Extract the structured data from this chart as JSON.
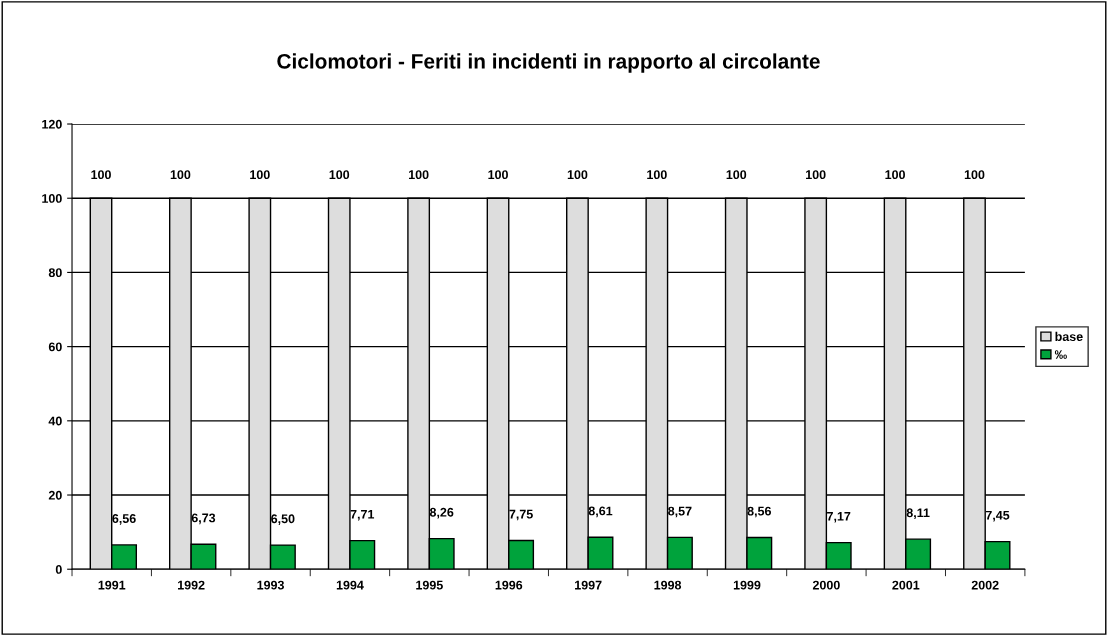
{
  "chart_data": {
    "type": "bar",
    "title": "Ciclomotori - Feriti in incidenti in rapporto al circolante",
    "categories": [
      "1991",
      "1992",
      "1993",
      "1994",
      "1995",
      "1996",
      "1997",
      "1998",
      "1999",
      "2000",
      "2001",
      "2002"
    ],
    "series": [
      {
        "name": "base",
        "color": "#dddddd",
        "values": [
          100,
          100,
          100,
          100,
          100,
          100,
          100,
          100,
          100,
          100,
          100,
          100
        ],
        "value_labels": [
          "100",
          "100",
          "100",
          "100",
          "100",
          "100",
          "100",
          "100",
          "100",
          "100",
          "100",
          "100"
        ]
      },
      {
        "name": "‰",
        "color": "#00a33c",
        "values": [
          6.56,
          6.73,
          6.5,
          7.71,
          8.26,
          7.75,
          8.61,
          8.57,
          8.56,
          7.17,
          8.11,
          7.45
        ],
        "value_labels": [
          "6,56",
          "6,73",
          "6,50",
          "7,71",
          "8,26",
          "7,75",
          "8,61",
          "8,57",
          "8,56",
          "7,17",
          "8,11",
          "7,45"
        ]
      }
    ],
    "ylim": [
      0,
      120
    ],
    "yticks": [
      0,
      20,
      40,
      60,
      80,
      100,
      120
    ],
    "grid": "y",
    "legend": "right"
  }
}
